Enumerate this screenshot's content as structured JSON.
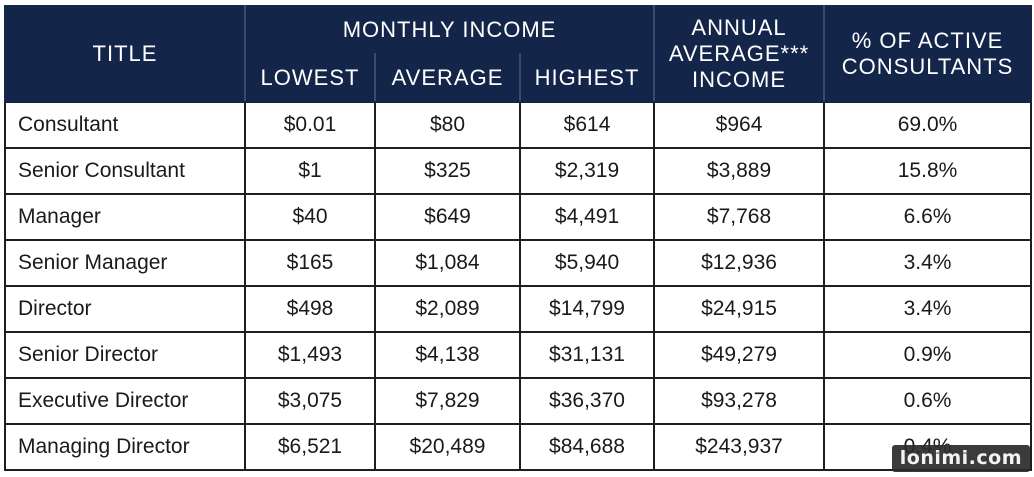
{
  "headers": {
    "title": "TITLE",
    "monthly_income": "MONTHLY INCOME",
    "lowest": "LOWEST",
    "average": "AVERAGE",
    "highest": "HIGHEST",
    "annual_line1": "ANNUAL",
    "annual_line2": "AVERAGE***",
    "annual_line3": "INCOME",
    "pct_line1": "% OF ACTIVE",
    "pct_line2": "CONSULTANTS"
  },
  "rows": [
    {
      "title": "Consultant",
      "lowest": "$0.01",
      "average": "$80",
      "highest": "$614",
      "annual": "$964",
      "pct": "69.0%"
    },
    {
      "title": "Senior Consultant",
      "lowest": "$1",
      "average": "$325",
      "highest": "$2,319",
      "annual": "$3,889",
      "pct": "15.8%"
    },
    {
      "title": "Manager",
      "lowest": "$40",
      "average": "$649",
      "highest": "$4,491",
      "annual": "$7,768",
      "pct": "6.6%"
    },
    {
      "title": "Senior Manager",
      "lowest": "$165",
      "average": "$1,084",
      "highest": "$5,940",
      "annual": "$12,936",
      "pct": "3.4%"
    },
    {
      "title": "Director",
      "lowest": "$498",
      "average": "$2,089",
      "highest": "$14,799",
      "annual": "$24,915",
      "pct": "3.4%"
    },
    {
      "title": "Senior Director",
      "lowest": "$1,493",
      "average": "$4,138",
      "highest": "$31,131",
      "annual": "$49,279",
      "pct": "0.9%"
    },
    {
      "title": "Executive Director",
      "lowest": "$3,075",
      "average": "$7,829",
      "highest": "$36,370",
      "annual": "$93,278",
      "pct": "0.6%"
    },
    {
      "title": "Managing Director",
      "lowest": "$6,521",
      "average": "$20,489",
      "highest": "$84,688",
      "annual": "$243,937",
      "pct": "0.4%"
    }
  ],
  "watermark": "lonimi.com"
}
